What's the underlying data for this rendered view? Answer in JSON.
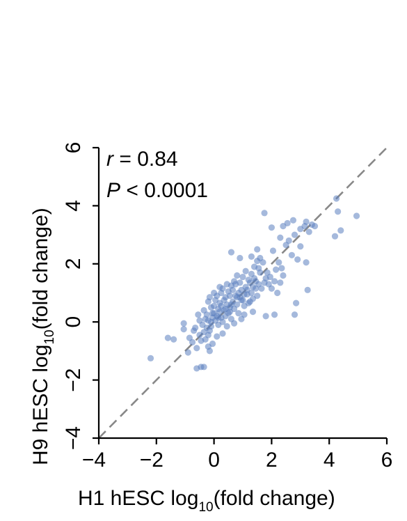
{
  "chart_data": {
    "type": "scatter",
    "xlabel_main": "H1 hESC log",
    "xlabel_sub": "10",
    "xlabel_tail": "(fold change)",
    "ylabel_main": "H9 hESC log",
    "ylabel_sub": "10",
    "ylabel_tail": "(fold change)",
    "annotation_r_symbol": "r",
    "annotation_r_value": " = 0.84",
    "annotation_p_symbol": "P",
    "annotation_p_value": " < 0.0001",
    "xlim": [
      -4,
      6
    ],
    "ylim": [
      -4,
      6
    ],
    "xticks": [
      "−4",
      "−2",
      "0",
      "2",
      "4",
      "6"
    ],
    "yticks": [
      "−4",
      "−2",
      "0",
      "2",
      "4",
      "6"
    ],
    "tick_values": [
      -4,
      -2,
      0,
      2,
      4,
      6
    ],
    "reference_line": "y = x (dashed)",
    "point_color": "#5b7fc0",
    "grid": false,
    "points": [
      [
        -2.2,
        -1.25
      ],
      [
        -1.6,
        -0.55
      ],
      [
        -1.4,
        -0.6
      ],
      [
        -1.05,
        -0.25
      ],
      [
        -1.05,
        -0.05
      ],
      [
        -0.9,
        -1.05
      ],
      [
        -0.75,
        -0.7
      ],
      [
        -0.6,
        -1.6
      ],
      [
        -0.45,
        -1.55
      ],
      [
        -0.35,
        -1.55
      ],
      [
        -0.6,
        -0.9
      ],
      [
        -0.45,
        -0.65
      ],
      [
        -0.3,
        -0.6
      ],
      [
        -0.2,
        -0.45
      ],
      [
        -0.15,
        -0.3
      ],
      [
        -0.1,
        -0.15
      ],
      [
        -0.4,
        -0.1
      ],
      [
        -0.5,
        0.05
      ],
      [
        -0.3,
        0.1
      ],
      [
        -0.25,
        0.25
      ],
      [
        -0.2,
        0.05
      ],
      [
        -0.1,
        0.0
      ],
      [
        -0.05,
        0.15
      ],
      [
        0.0,
        0.3
      ],
      [
        0.05,
        0.05
      ],
      [
        0.1,
        0.2
      ],
      [
        0.15,
        -0.1
      ],
      [
        0.2,
        0.35
      ],
      [
        0.25,
        0.15
      ],
      [
        0.3,
        0.0
      ],
      [
        0.35,
        0.4
      ],
      [
        0.4,
        0.2
      ],
      [
        0.45,
        0.6
      ],
      [
        0.5,
        0.3
      ],
      [
        0.55,
        0.5
      ],
      [
        0.6,
        0.1
      ],
      [
        0.65,
        0.7
      ],
      [
        0.7,
        0.45
      ],
      [
        0.75,
        0.9
      ],
      [
        0.8,
        0.6
      ],
      [
        0.85,
        0.3
      ],
      [
        0.9,
        0.85
      ],
      [
        0.95,
        1.1
      ],
      [
        1.0,
        0.75
      ],
      [
        1.05,
        0.55
      ],
      [
        1.1,
        1.2
      ],
      [
        1.15,
        0.95
      ],
      [
        1.2,
        0.65
      ],
      [
        1.25,
        1.35
      ],
      [
        1.3,
        1.0
      ],
      [
        1.35,
        0.8
      ],
      [
        1.4,
        1.5
      ],
      [
        1.45,
        1.15
      ],
      [
        1.5,
        0.9
      ],
      [
        0.0,
        0.55
      ],
      [
        0.05,
        0.75
      ],
      [
        0.1,
        0.9
      ],
      [
        0.15,
        0.45
      ],
      [
        0.2,
        0.65
      ],
      [
        0.25,
        1.0
      ],
      [
        -0.1,
        0.5
      ],
      [
        -0.2,
        0.7
      ],
      [
        0.3,
        1.15
      ],
      [
        0.4,
        0.85
      ],
      [
        0.5,
        1.05
      ],
      [
        0.6,
        1.25
      ],
      [
        0.7,
        1.4
      ],
      [
        0.8,
        1.6
      ],
      [
        0.9,
        1.35
      ],
      [
        1.0,
        1.55
      ],
      [
        1.1,
        1.75
      ],
      [
        1.2,
        1.45
      ],
      [
        1.3,
        1.65
      ],
      [
        1.4,
        1.9
      ],
      [
        1.5,
        2.1
      ],
      [
        1.6,
        1.7
      ],
      [
        1.7,
        2.05
      ],
      [
        1.8,
        1.5
      ],
      [
        1.9,
        1.3
      ],
      [
        2.0,
        1.15
      ],
      [
        2.1,
        1.4
      ],
      [
        2.2,
        1.0
      ],
      [
        2.3,
        1.35
      ],
      [
        2.4,
        1.6
      ],
      [
        0.6,
        2.4
      ],
      [
        0.9,
        2.2
      ],
      [
        1.3,
        2.25
      ],
      [
        1.6,
        2.2
      ],
      [
        1.5,
        2.5
      ],
      [
        2.05,
        2.45
      ],
      [
        2.3,
        2.9
      ],
      [
        2.5,
        2.65
      ],
      [
        2.6,
        2.8
      ],
      [
        2.8,
        3.0
      ],
      [
        2.4,
        3.3
      ],
      [
        2.75,
        3.5
      ],
      [
        3.0,
        2.6
      ],
      [
        3.2,
        3.45
      ],
      [
        3.3,
        3.1
      ],
      [
        3.4,
        3.35
      ],
      [
        3.5,
        3.3
      ],
      [
        3.0,
        3.2
      ],
      [
        1.75,
        3.75
      ],
      [
        2.0,
        3.25
      ],
      [
        2.55,
        3.4
      ],
      [
        3.15,
        3.3
      ],
      [
        4.25,
        4.25
      ],
      [
        4.2,
        2.95
      ],
      [
        4.3,
        3.8
      ],
      [
        4.4,
        3.15
      ],
      [
        4.95,
        3.65
      ],
      [
        3.2,
        2.05
      ],
      [
        3.25,
        1.1
      ],
      [
        2.85,
        0.65
      ],
      [
        2.8,
        0.25
      ],
      [
        2.1,
        0.25
      ],
      [
        1.8,
        0.2
      ],
      [
        1.35,
        0.35
      ],
      [
        1.05,
        0.25
      ],
      [
        0.95,
        0.1
      ],
      [
        0.7,
        -0.05
      ],
      [
        0.45,
        -0.15
      ],
      [
        0.3,
        -0.4
      ],
      [
        0.1,
        -0.5
      ],
      [
        -0.05,
        -0.75
      ],
      [
        -0.2,
        -0.85
      ],
      [
        -0.15,
        -1.0
      ],
      [
        -0.85,
        -0.55
      ],
      [
        -0.7,
        -0.3
      ],
      [
        -0.55,
        0.25
      ],
      [
        -0.35,
        0.4
      ],
      [
        -0.15,
        0.85
      ],
      [
        0.0,
        1.0
      ],
      [
        0.2,
        1.2
      ],
      [
        0.45,
        1.3
      ],
      [
        0.55,
        0.9
      ],
      [
        0.65,
        1.1
      ],
      [
        0.75,
        1.3
      ],
      [
        0.85,
        1.0
      ],
      [
        0.95,
        0.75
      ],
      [
        1.05,
        0.95
      ],
      [
        1.15,
        1.1
      ],
      [
        1.25,
        0.7
      ],
      [
        1.35,
        1.2
      ],
      [
        1.45,
        1.4
      ],
      [
        1.55,
        1.3
      ],
      [
        1.65,
        1.15
      ],
      [
        1.75,
        1.35
      ],
      [
        1.85,
        1.7
      ],
      [
        1.95,
        1.55
      ],
      [
        2.15,
        1.8
      ],
      [
        2.25,
        2.05
      ],
      [
        2.35,
        1.85
      ],
      [
        2.7,
        2.3
      ],
      [
        2.9,
        2.15
      ],
      [
        1.55,
        1.85
      ],
      [
        0.35,
        0.75
      ],
      [
        0.55,
        0.35
      ],
      [
        0.15,
        0.15
      ],
      [
        -0.05,
        0.3
      ],
      [
        -0.25,
        -0.2
      ],
      [
        -0.35,
        -0.35
      ],
      [
        -0.5,
        -0.45
      ],
      [
        -0.65,
        -0.2
      ],
      [
        0.25,
        0.55
      ],
      [
        0.4,
        0.45
      ],
      [
        0.6,
        0.6
      ],
      [
        0.8,
        0.85
      ]
    ]
  }
}
